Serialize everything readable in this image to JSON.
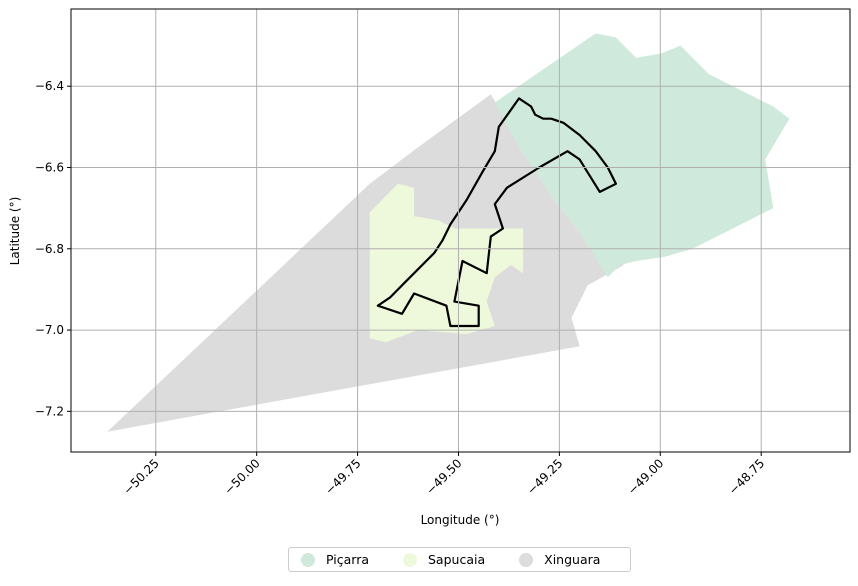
{
  "chart_data": {
    "type": "map",
    "xlabel": "Longitude (°)",
    "ylabel": "Latitude (°)",
    "xlim": [
      -50.46,
      -48.53
    ],
    "ylim": [
      -7.3,
      -6.21
    ],
    "x_ticks": [
      -50.25,
      -50.0,
      -49.75,
      -49.5,
      -49.25,
      -49.0,
      -48.75
    ],
    "x_tick_labels": [
      "−50.25",
      "−50.00",
      "−49.75",
      "−49.50",
      "−49.25",
      "−49.00",
      "−48.75"
    ],
    "y_ticks": [
      -6.4,
      -6.6,
      -6.8,
      -7.0,
      -7.2
    ],
    "y_tick_labels": [
      "−6.4",
      "−6.6",
      "−6.8",
      "−7.0",
      "−7.2"
    ],
    "grid": true,
    "legend_position": "bottom-center",
    "regions": [
      {
        "name": "Xinguara",
        "color": "#dcdcdc",
        "coords": [
          [
            -50.37,
            -7.25
          ],
          [
            -49.2,
            -7.04
          ],
          [
            -49.22,
            -6.97
          ],
          [
            -49.18,
            -6.89
          ],
          [
            -49.09,
            -6.84
          ],
          [
            -49.2,
            -6.76
          ],
          [
            -49.27,
            -6.67
          ],
          [
            -49.42,
            -6.42
          ],
          [
            -49.6,
            -6.55
          ],
          [
            -49.72,
            -6.64
          ],
          [
            -50.37,
            -7.25
          ]
        ]
      },
      {
        "name": "Sapucaia",
        "color": "#eef8da",
        "coords": [
          [
            -49.72,
            -6.71
          ],
          [
            -49.65,
            -6.64
          ],
          [
            -49.61,
            -6.65
          ],
          [
            -49.61,
            -6.72
          ],
          [
            -49.55,
            -6.73
          ],
          [
            -49.51,
            -6.75
          ],
          [
            -49.34,
            -6.75
          ],
          [
            -49.34,
            -6.86
          ],
          [
            -49.37,
            -6.84
          ],
          [
            -49.41,
            -6.87
          ],
          [
            -49.43,
            -6.93
          ],
          [
            -49.41,
            -6.99
          ],
          [
            -49.48,
            -7.01
          ],
          [
            -49.6,
            -7.0
          ],
          [
            -49.68,
            -7.03
          ],
          [
            -49.72,
            -7.02
          ],
          [
            -49.72,
            -6.71
          ]
        ]
      },
      {
        "name": "Piçarra",
        "color": "#cfeadc",
        "coords": [
          [
            -49.41,
            -6.44
          ],
          [
            -49.16,
            -6.27
          ],
          [
            -49.11,
            -6.28
          ],
          [
            -49.06,
            -6.33
          ],
          [
            -49.0,
            -6.32
          ],
          [
            -48.95,
            -6.3
          ],
          [
            -48.88,
            -6.37
          ],
          [
            -48.72,
            -6.45
          ],
          [
            -48.68,
            -6.48
          ],
          [
            -48.74,
            -6.58
          ],
          [
            -48.72,
            -6.7
          ],
          [
            -48.8,
            -6.74
          ],
          [
            -48.92,
            -6.8
          ],
          [
            -48.99,
            -6.82
          ],
          [
            -49.06,
            -6.83
          ],
          [
            -49.1,
            -6.84
          ],
          [
            -49.13,
            -6.87
          ],
          [
            -49.2,
            -6.76
          ],
          [
            -49.27,
            -6.67
          ],
          [
            -49.35,
            -6.55
          ],
          [
            -49.41,
            -6.44
          ]
        ]
      }
    ],
    "outline": {
      "color": "#000000",
      "coords": [
        [
          -49.4,
          -6.5
        ],
        [
          -49.35,
          -6.43
        ],
        [
          -49.32,
          -6.45
        ],
        [
          -49.31,
          -6.47
        ],
        [
          -49.29,
          -6.48
        ],
        [
          -49.27,
          -6.48
        ],
        [
          -49.24,
          -6.49
        ],
        [
          -49.2,
          -6.52
        ],
        [
          -49.16,
          -6.56
        ],
        [
          -49.13,
          -6.6
        ],
        [
          -49.11,
          -6.64
        ],
        [
          -49.15,
          -6.66
        ],
        [
          -49.2,
          -6.58
        ],
        [
          -49.23,
          -6.56
        ],
        [
          -49.3,
          -6.6
        ],
        [
          -49.38,
          -6.65
        ],
        [
          -49.41,
          -6.69
        ],
        [
          -49.39,
          -6.75
        ],
        [
          -49.42,
          -6.77
        ],
        [
          -49.43,
          -6.86
        ],
        [
          -49.49,
          -6.83
        ],
        [
          -49.51,
          -6.93
        ],
        [
          -49.45,
          -6.94
        ],
        [
          -49.45,
          -6.99
        ],
        [
          -49.52,
          -6.99
        ],
        [
          -49.53,
          -6.94
        ],
        [
          -49.61,
          -6.91
        ],
        [
          -49.64,
          -6.96
        ],
        [
          -49.7,
          -6.94
        ],
        [
          -49.67,
          -6.92
        ],
        [
          -49.63,
          -6.88
        ],
        [
          -49.56,
          -6.81
        ],
        [
          -49.54,
          -6.78
        ],
        [
          -49.52,
          -6.74
        ],
        [
          -49.48,
          -6.68
        ],
        [
          -49.44,
          -6.61
        ],
        [
          -49.41,
          -6.56
        ],
        [
          -49.4,
          -6.5
        ]
      ]
    }
  },
  "legend": {
    "items": [
      {
        "label": "Piçarra",
        "color": "#cfeadc"
      },
      {
        "label": "Sapucaia",
        "color": "#eef8da"
      },
      {
        "label": "Xinguara",
        "color": "#dcdcdc"
      }
    ]
  }
}
